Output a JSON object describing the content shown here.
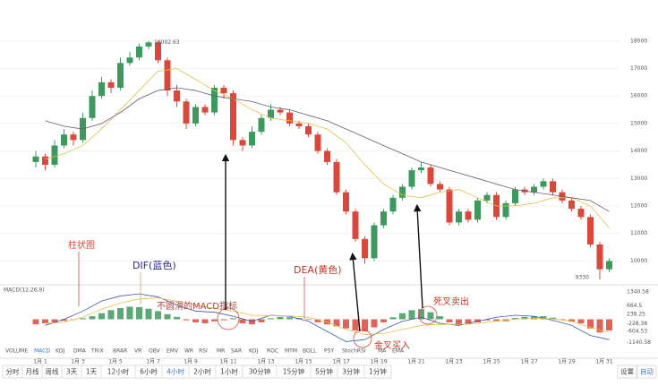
{
  "chart_data": [
    {
      "type": "candlestick",
      "ylim": [
        9200,
        19100
      ],
      "yticks": [
        10000,
        11000,
        12000,
        13000,
        14000,
        15000,
        16000,
        17000,
        18000
      ],
      "grid": true,
      "up_color": "#3d9a5c",
      "down_color": "#d9483b",
      "categories": [
        "1月 1",
        null,
        null,
        null,
        "1月 3",
        null,
        null,
        null,
        "1月 5",
        null,
        null,
        null,
        "1月 7",
        null,
        null,
        null,
        "1月 9",
        null,
        null,
        null,
        "1月 11",
        null,
        null,
        null,
        "1月 13",
        null,
        null,
        null,
        "1月 15",
        null,
        null,
        null,
        "1月 17",
        null,
        null,
        null,
        "1月 19",
        null,
        null,
        null,
        "1月 21",
        null,
        null,
        null,
        "1月 23",
        null,
        null,
        null,
        "1月 25",
        null,
        null,
        null,
        "1月 27",
        null,
        null,
        null,
        "1月 29",
        null,
        null,
        null,
        "1月 31",
        null
      ],
      "candles": [
        [
          13600,
          14000,
          13400,
          13800
        ],
        [
          13800,
          13900,
          13300,
          13500
        ],
        [
          13500,
          14400,
          13400,
          14200
        ],
        [
          14200,
          14800,
          14100,
          14600
        ],
        [
          14600,
          14700,
          14200,
          14400
        ],
        [
          14400,
          15400,
          14300,
          15200
        ],
        [
          15200,
          16200,
          15100,
          16000
        ],
        [
          16000,
          16700,
          15900,
          16500
        ],
        [
          16500,
          16600,
          16100,
          16300
        ],
        [
          16300,
          17400,
          16200,
          17200
        ],
        [
          17200,
          17600,
          17100,
          17400
        ],
        [
          17400,
          17900,
          17300,
          17800
        ],
        [
          17800,
          18002.63,
          17700,
          17950
        ],
        [
          17950,
          18000,
          17200,
          17300
        ],
        [
          17300,
          17400,
          16000,
          16200
        ],
        [
          16200,
          16400,
          15600,
          15800
        ],
        [
          15800,
          15900,
          14800,
          15000
        ],
        [
          15000,
          15700,
          14900,
          15600
        ],
        [
          15600,
          15700,
          15300,
          15400
        ],
        [
          15400,
          16400,
          15300,
          16300
        ],
        [
          16300,
          16400,
          15900,
          16100
        ],
        [
          16100,
          16200,
          14200,
          14400
        ],
        [
          14400,
          14500,
          14000,
          14200
        ],
        [
          14200,
          14900,
          14100,
          14700
        ],
        [
          14700,
          15300,
          14600,
          15200
        ],
        [
          15200,
          15700,
          15100,
          15500
        ],
        [
          15500,
          15600,
          15300,
          15400
        ],
        [
          15400,
          15500,
          14900,
          15000
        ],
        [
          15000,
          15100,
          14800,
          14900
        ],
        [
          14900,
          15000,
          14500,
          14600
        ],
        [
          14600,
          14700,
          13900,
          14000
        ],
        [
          14000,
          14100,
          13500,
          13600
        ],
        [
          13600,
          13700,
          12400,
          12500
        ],
        [
          12500,
          12600,
          11700,
          11800
        ],
        [
          11800,
          11900,
          10700,
          10800
        ],
        [
          10800,
          10900,
          9900,
          10100
        ],
        [
          10100,
          11400,
          10000,
          11300
        ],
        [
          11300,
          11900,
          11200,
          11800
        ],
        [
          11800,
          12400,
          11700,
          12300
        ],
        [
          12300,
          12800,
          12200,
          12700
        ],
        [
          12700,
          13400,
          12600,
          13300
        ],
        [
          13300,
          13600,
          13200,
          13400
        ],
        [
          13400,
          13500,
          12700,
          12800
        ],
        [
          12800,
          12900,
          12500,
          12600
        ],
        [
          12600,
          12700,
          11300,
          11400
        ],
        [
          11400,
          11900,
          11300,
          11800
        ],
        [
          11800,
          11900,
          11400,
          11500
        ],
        [
          11500,
          12300,
          11400,
          12200
        ],
        [
          12200,
          12500,
          12100,
          12400
        ],
        [
          12400,
          12500,
          11500,
          11600
        ],
        [
          11600,
          12200,
          11500,
          12100
        ],
        [
          12100,
          12700,
          12000,
          12600
        ],
        [
          12600,
          12700,
          12400,
          12500
        ],
        [
          12500,
          12800,
          12400,
          12700
        ],
        [
          12700,
          13000,
          12600,
          12900
        ],
        [
          12900,
          13000,
          12400,
          12500
        ],
        [
          12500,
          12600,
          12100,
          12200
        ],
        [
          12200,
          12300,
          11800,
          11900
        ],
        [
          11900,
          12000,
          11500,
          11600
        ],
        [
          11600,
          11700,
          10500,
          10600
        ],
        [
          10600,
          10700,
          9330,
          9700
        ],
        [
          9700,
          10100,
          9600,
          10000
        ]
      ],
      "lines": [
        {
          "color": "#e0c14a",
          "values": [
            13700,
            13900,
            14200,
            14800,
            15500,
            16200,
            16900,
            17000,
            16600,
            16200,
            15900,
            15500,
            15200,
            15100,
            15000,
            14800,
            14300,
            13500,
            12800,
            12400,
            12300,
            12500,
            12600,
            12300,
            12000,
            12000,
            12100,
            12300,
            12300,
            12000,
            11200
          ]
        },
        {
          "color": "#6b5a6e",
          "values": [
            15100,
            14900,
            14800,
            15000,
            15400,
            15900,
            16200,
            16300,
            16200,
            16000,
            15900,
            15800,
            15600,
            15500,
            15300,
            15100,
            14800,
            14500,
            14200,
            13900,
            13600,
            13400,
            13200,
            13000,
            12800,
            12600,
            12500,
            12400,
            12300,
            12200,
            11800
          ]
        }
      ]
    },
    {
      "type": "macd",
      "title": "MACD(12,26,9)",
      "ylim": [
        -1565,
        1610
      ],
      "yticks": [
        -1140.58,
        -604.53,
        -228.38,
        238.25,
        664.5,
        1340.58
      ],
      "histogram": [
        -250,
        -200,
        -150,
        -80,
        -20,
        50,
        150,
        300,
        450,
        550,
        620,
        600,
        520,
        400,
        250,
        120,
        -50,
        -150,
        -200,
        -100,
        -50,
        50,
        -200,
        -250,
        -150,
        50,
        120,
        100,
        60,
        -30,
        -150,
        -250,
        -350,
        -450,
        -550,
        -600,
        -400,
        -150,
        100,
        300,
        450,
        500,
        350,
        150,
        -150,
        -300,
        -250,
        -150,
        -50,
        -80,
        -100,
        60,
        120,
        150,
        150,
        80,
        -40,
        -120,
        -200,
        -450,
        -650,
        -550
      ],
      "lines": [
        {
          "color": "#3b5ba8",
          "values": [
            -300,
            0,
            400,
            900,
            1150,
            1250,
            1100,
            700,
            400,
            350,
            150,
            -100,
            200,
            150,
            -100,
            -600,
            -1100,
            -1000,
            -500,
            -100,
            100,
            -200,
            -300,
            -100,
            100,
            200,
            150,
            -50,
            -300,
            -800,
            -1000
          ]
        },
        {
          "color": "#e0c14a",
          "values": [
            -200,
            -150,
            100,
            500,
            800,
            1000,
            1050,
            900,
            700,
            550,
            400,
            200,
            180,
            170,
            100,
            -150,
            -500,
            -750,
            -700,
            -500,
            -300,
            -250,
            -250,
            -200,
            -100,
            0,
            50,
            20,
            -100,
            -400,
            -650
          ]
        }
      ]
    }
  ],
  "annotations": {
    "histogram": "柱状图",
    "dif": "DIF(蓝色)",
    "dea": "DEA(黄色)",
    "rough": "不圆滑的MACD指标",
    "golden": "金叉买入",
    "death": "死叉卖出"
  },
  "indicator_tabs": [
    "VOLUME",
    "MACD",
    "KDJ",
    "DMA",
    "TRIX",
    "BRAR",
    "VR",
    "OBV",
    "EMV",
    "WR",
    "RSI",
    "MR",
    "SAR",
    "KDJ",
    "ROC",
    "MTM",
    "BOLL",
    "PSY",
    "StochRSI",
    "MA",
    "EMA"
  ],
  "timeframes": [
    "分时",
    "月线",
    "周线",
    "3天",
    "1天",
    "12小时",
    "6小时",
    "4小时",
    "2小时",
    "1小时",
    "30分钟",
    "15分钟",
    "5分钟",
    "3分钟",
    "1分钟"
  ],
  "active_timeframe": 7,
  "settings_buttons": [
    "设置",
    "自动"
  ]
}
